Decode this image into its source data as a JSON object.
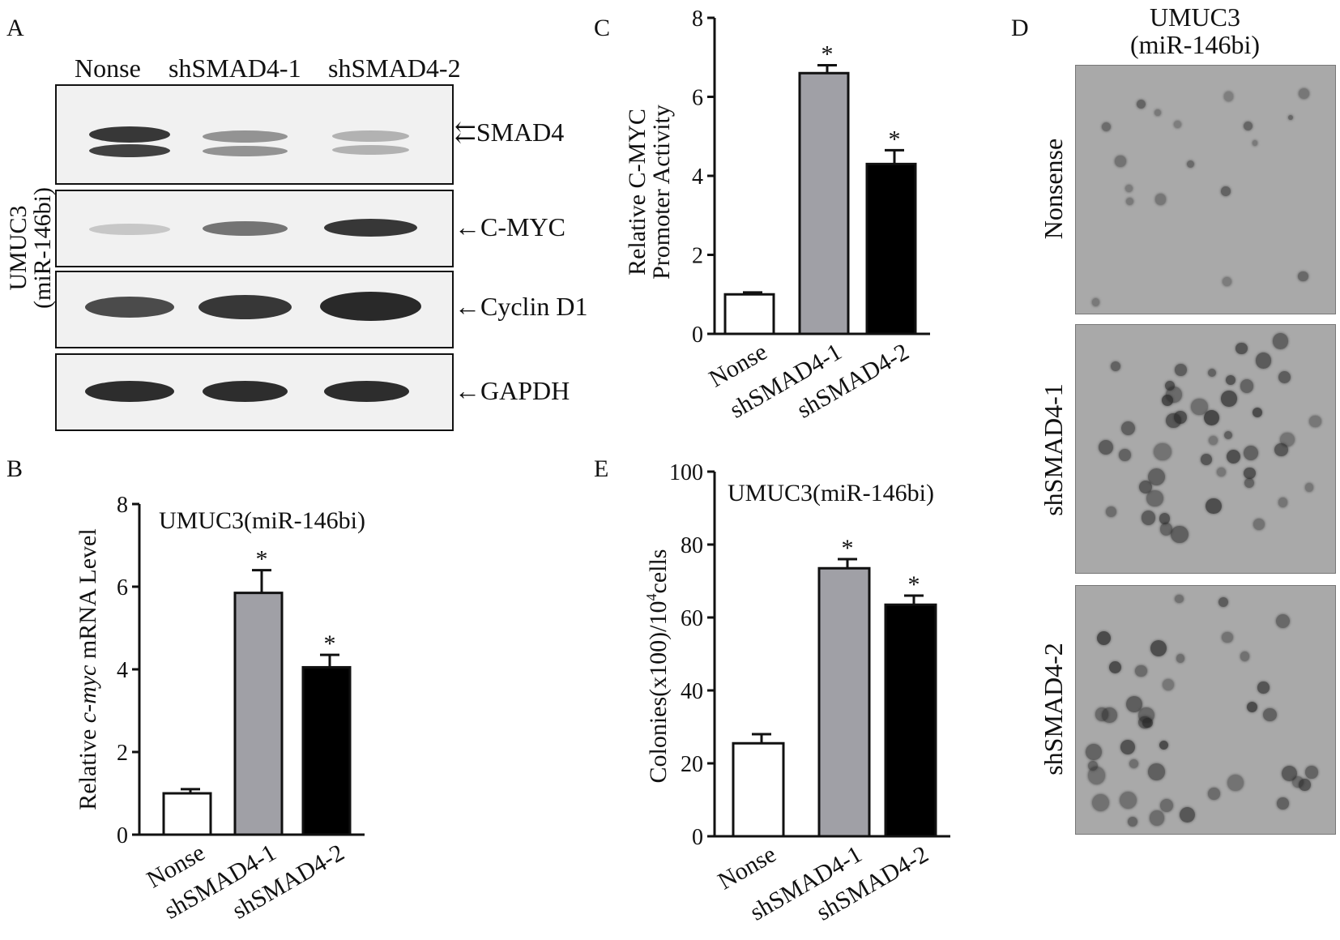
{
  "panels": {
    "A": {
      "letter": "A",
      "lanes": [
        "Nonse",
        "shSMAD4-1",
        "shSMAD4-2"
      ],
      "side_label_line1": "UMUC3",
      "side_label_line2": "(miR-146bi)",
      "blots": [
        {
          "label": "SMAD4",
          "arrow": "⇇"
        },
        {
          "label": "C-MYC",
          "arrow": "←"
        },
        {
          "label": "Cyclin D1",
          "arrow": "←"
        },
        {
          "label": "GAPDH",
          "arrow": "←"
        }
      ]
    },
    "D": {
      "letter": "D",
      "title_line1": "UMUC3",
      "title_line2": "(miR-146bi)",
      "rows": [
        "Nonsense",
        "shSMAD4-1",
        "shSMAD4-2"
      ]
    }
  },
  "chart_data": [
    {
      "panel": "B",
      "type": "bar",
      "title": "UMUC3(miR-146bi)",
      "ylabel_pre": "Relative ",
      "ylabel_italic": "c-myc",
      "ylabel_post": " mRNA Level",
      "categories": [
        "Nonse",
        "shSMAD4-1",
        "shSMAD4-2"
      ],
      "values": [
        1.0,
        5.85,
        4.05
      ],
      "errors": [
        0.1,
        0.55,
        0.3
      ],
      "significance": [
        "",
        "*",
        "*"
      ],
      "bar_colors": [
        "#ffffff",
        "#a0a0a6",
        "#000000"
      ],
      "ylim": [
        0,
        8
      ],
      "yticks": [
        "0",
        "2",
        "4",
        "6",
        "8"
      ]
    },
    {
      "panel": "C",
      "type": "bar",
      "title": "",
      "ylabel_line1": "Relative  C-MYC",
      "ylabel_line2": "Promoter Activity",
      "categories": [
        "Nonse",
        "shSMAD4-1",
        "shSMAD4-2"
      ],
      "values": [
        1.0,
        6.6,
        4.3
      ],
      "errors": [
        0.05,
        0.2,
        0.35
      ],
      "significance": [
        "",
        "*",
        "*"
      ],
      "bar_colors": [
        "#ffffff",
        "#a0a0a6",
        "#000000"
      ],
      "ylim": [
        0,
        8
      ],
      "yticks": [
        "0",
        "2",
        "4",
        "6",
        "8"
      ]
    },
    {
      "panel": "E",
      "type": "bar",
      "title": "UMUC3(miR-146bi)",
      "ylabel_pre": "Colonies(x100)/10",
      "ylabel_sup": "4",
      "ylabel_post": "cells",
      "categories": [
        "Nonse",
        "shSMAD4-1",
        "shSMAD4-2"
      ],
      "values": [
        25.5,
        73.5,
        63.5
      ],
      "errors": [
        2.5,
        2.5,
        2.5
      ],
      "significance": [
        "",
        "*",
        "*"
      ],
      "bar_colors": [
        "#ffffff",
        "#a0a0a6",
        "#000000"
      ],
      "ylim": [
        0,
        100
      ],
      "yticks": [
        "0",
        "20",
        "40",
        "60",
        "80",
        "100"
      ]
    }
  ]
}
